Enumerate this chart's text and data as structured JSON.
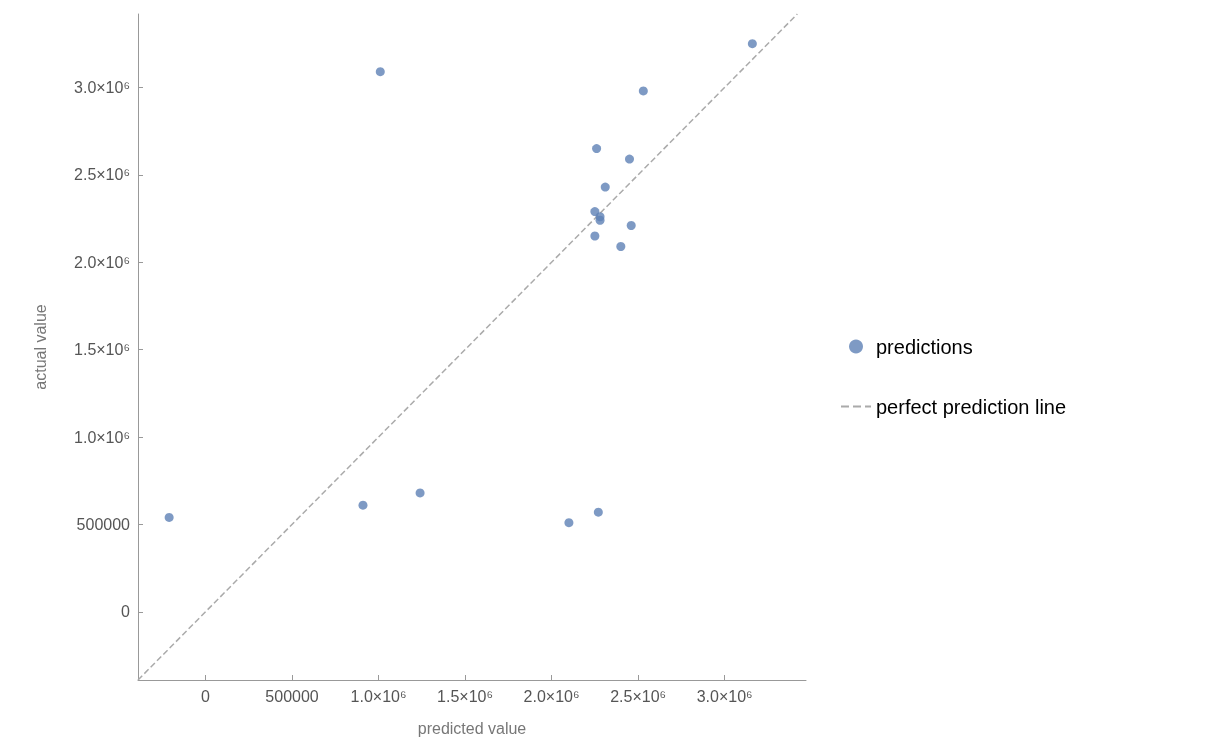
{
  "chart_data": {
    "type": "scatter",
    "xlabel": "predicted value",
    "ylabel": "actual value",
    "xlim": [
      -390000,
      3470000
    ],
    "ylim": [
      -390000,
      3420000
    ],
    "xticks": [
      0,
      500000,
      {
        "value": 1000000,
        "label": "1.0×10⁶"
      },
      {
        "value": 1500000,
        "label": "1.5×10⁶"
      },
      {
        "value": 2000000,
        "label": "2.0×10⁶"
      },
      {
        "value": 2500000,
        "label": "2.5×10⁶"
      },
      {
        "value": 3000000,
        "label": "3.0×10⁶"
      }
    ],
    "yticks": [
      0,
      500000,
      {
        "value": 1000000,
        "label": "1.0×10⁶"
      },
      {
        "value": 1500000,
        "label": "1.5×10⁶"
      },
      {
        "value": 2000000,
        "label": "2.0×10⁶"
      },
      {
        "value": 2500000,
        "label": "2.5×10⁶"
      },
      {
        "value": 3000000,
        "label": "3.0×10⁶"
      }
    ],
    "grid": false,
    "legend": "right",
    "marker": "circle",
    "series": [
      {
        "name": "predictions",
        "color": "#5e81b5",
        "x": [
          -210000,
          910000,
          1010000,
          1240000,
          2100000,
          2270000,
          2260000,
          2250000,
          2280000,
          2280000,
          2250000,
          2310000,
          2400000,
          2450000,
          2460000,
          2530000,
          3160000
        ],
        "values": [
          540000,
          610000,
          3090000,
          680000,
          510000,
          570000,
          2650000,
          2290000,
          2260000,
          2240000,
          2150000,
          2430000,
          2090000,
          2590000,
          2210000,
          2980000,
          3250000
        ]
      },
      {
        "name": "perfect prediction line",
        "type": "line",
        "color": "#aaaaaa",
        "line_style": "dashed",
        "marker": "none",
        "x": [
          -390000,
          3420000
        ],
        "values": [
          -390000,
          3420000
        ]
      }
    ]
  }
}
